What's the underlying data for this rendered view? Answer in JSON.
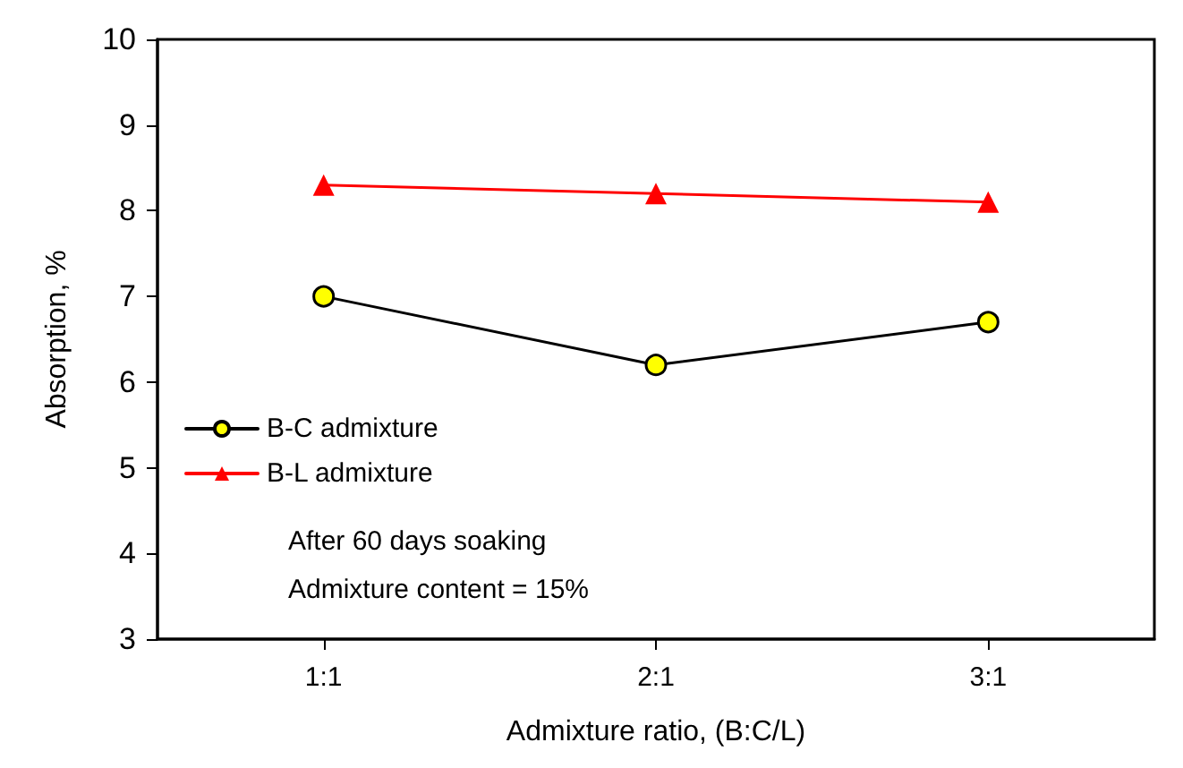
{
  "chart_data": {
    "type": "line",
    "xlabel": "Admixture ratio, (B:C/L)",
    "ylabel": "Absorption, %",
    "categories": [
      "1:1",
      "2:1",
      "3:1"
    ],
    "series": [
      {
        "name": "B-C admixture",
        "color": "#000000",
        "marker": "circle",
        "values": [
          7.0,
          6.2,
          6.7
        ]
      },
      {
        "name": "B-L admixture",
        "color": "#ff0000",
        "marker": "triangle",
        "values": [
          8.3,
          8.2,
          8.1
        ]
      }
    ],
    "ylim": [
      3,
      10
    ],
    "yticks": [
      3,
      4,
      5,
      6,
      7,
      8,
      9,
      10
    ],
    "grid": false,
    "legend": "bottom left",
    "annotations": [
      "After 60 days soaking",
      "Admixture content = 15%"
    ]
  }
}
